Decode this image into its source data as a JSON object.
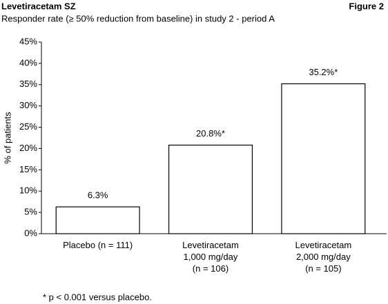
{
  "chart_data": {
    "type": "bar",
    "title": "Levetiracetam SZ",
    "figure_label": "Figure 2",
    "subtitle": "Responder rate (≥ 50% reduction from baseline) in study 2 - period A",
    "y_label": "% of patients",
    "categories": [
      "Placebo (n = 111)",
      "Levetiracetam\n1,000 mg/day\n(n = 106)",
      "Levetiracetam\n2,000 mg/day\n(n = 105)"
    ],
    "values": [
      6.3,
      20.8,
      35.2
    ],
    "value_labels": [
      "6.3%",
      "20.8%*",
      "35.2%*"
    ],
    "color": "#ffffff",
    "ylim": [
      0,
      45
    ],
    "yticks": [
      {
        "value": 0,
        "label": "0%"
      },
      {
        "value": 5,
        "label": "5%"
      },
      {
        "value": 10,
        "label": "10%"
      },
      {
        "value": 15,
        "label": "15%"
      },
      {
        "value": 20,
        "label": "20%"
      },
      {
        "value": 25,
        "label": "25%"
      },
      {
        "value": 30,
        "label": "30%"
      },
      {
        "value": 35,
        "label": "35%"
      },
      {
        "value": 40,
        "label": "40%"
      },
      {
        "value": 45,
        "label": "45%"
      }
    ],
    "grid": false,
    "footnote": "* p < 0.001 versus placebo."
  }
}
